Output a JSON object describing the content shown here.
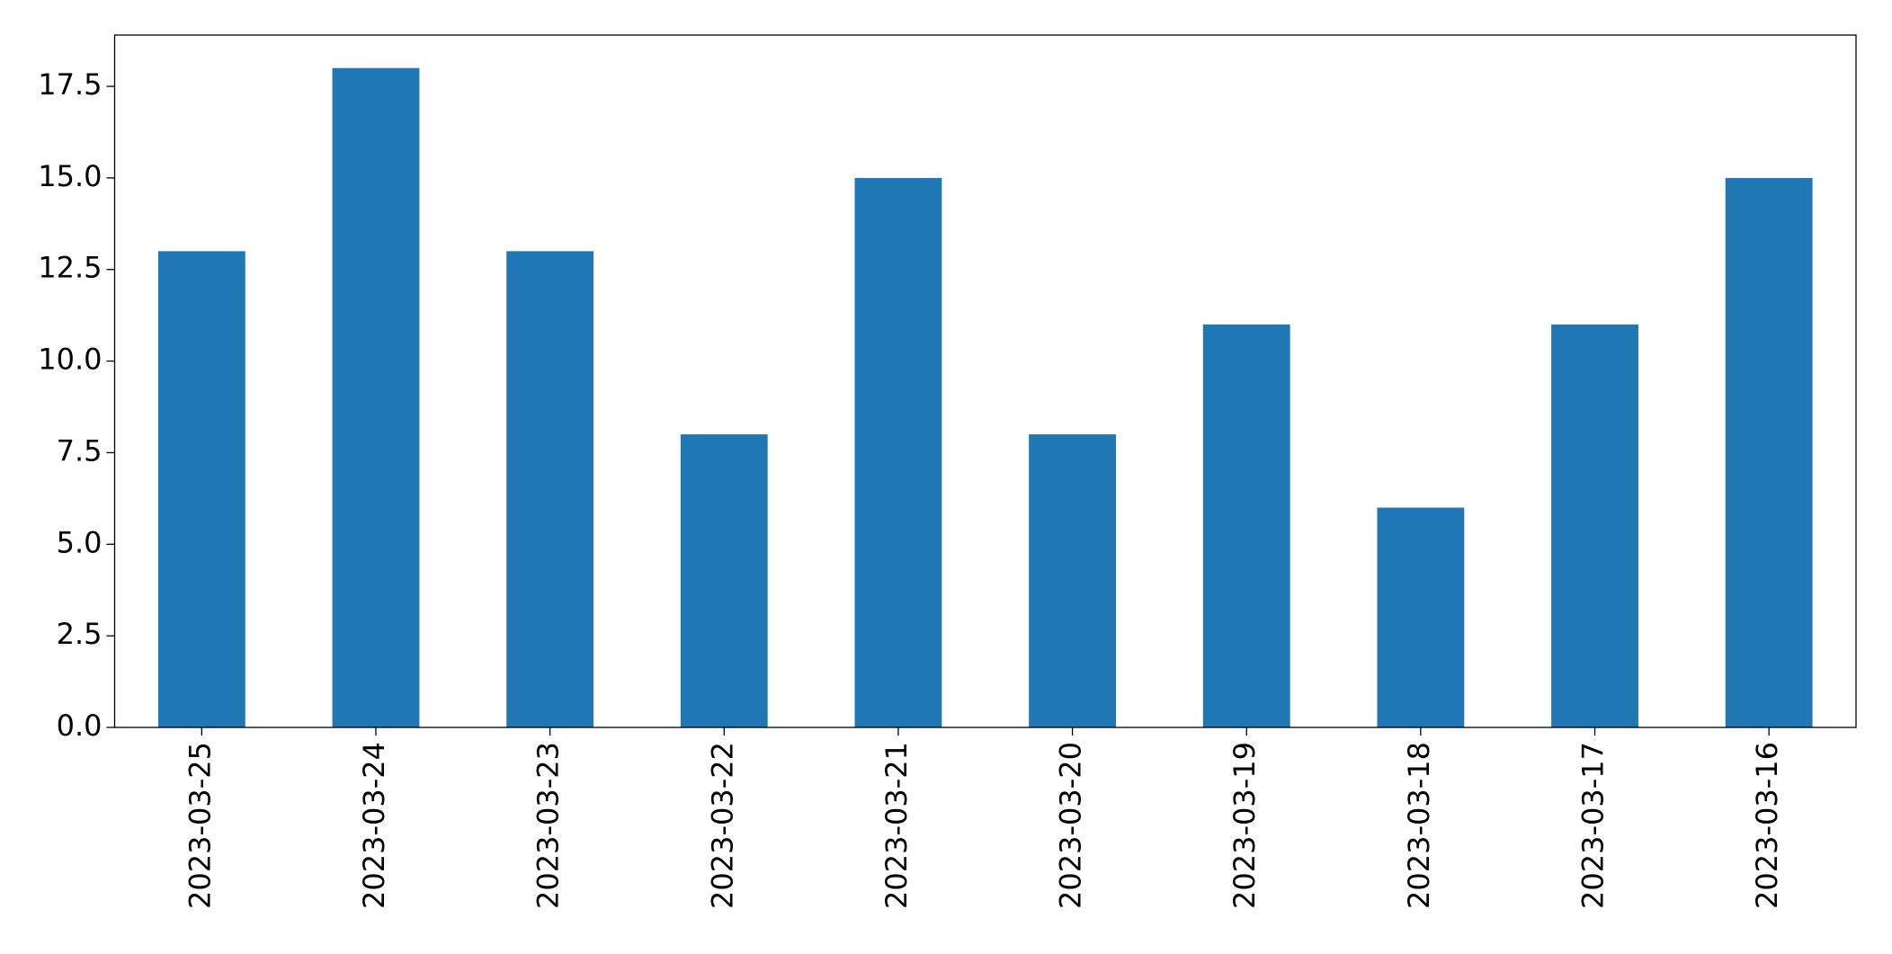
{
  "chart_data": {
    "type": "bar",
    "categories": [
      "2023-03-25",
      "2023-03-24",
      "2023-03-23",
      "2023-03-22",
      "2023-03-21",
      "2023-03-20",
      "2023-03-19",
      "2023-03-18",
      "2023-03-17",
      "2023-03-16"
    ],
    "values": [
      13,
      18,
      13,
      8,
      15,
      8,
      11,
      6,
      11,
      15
    ],
    "color": "#1f77b4",
    "ylim": [
      0,
      18.9
    ],
    "yticks": [
      {
        "value": 0,
        "label": "0.0"
      },
      2.5,
      {
        "value": 5,
        "label": "5.0"
      },
      7.5,
      {
        "value": 10,
        "label": "10.0"
      },
      12.5,
      {
        "value": 15,
        "label": "15.0"
      },
      17.5
    ],
    "grid": false
  }
}
